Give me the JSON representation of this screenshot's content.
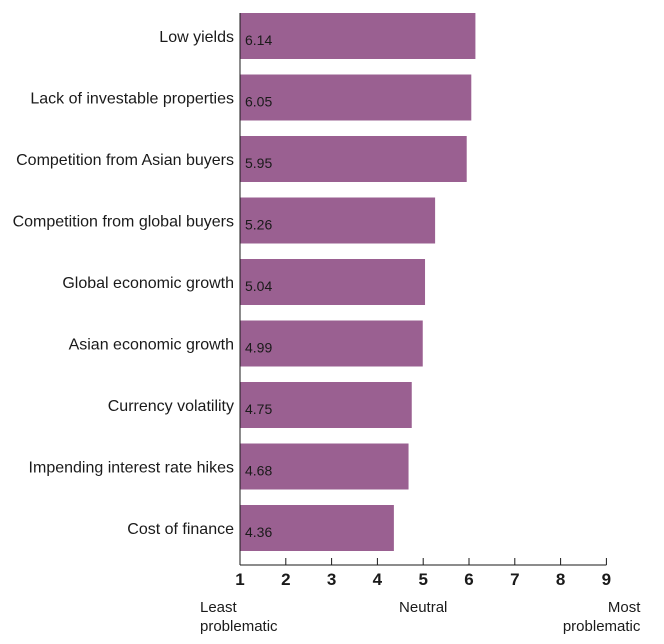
{
  "chart_data": {
    "type": "bar",
    "orientation": "horizontal",
    "categories": [
      "Low yields",
      "Lack of investable properties",
      "Competition from Asian buyers",
      "Competition from global buyers",
      "Global economic growth",
      "Asian economic growth",
      "Currency volatility",
      "Impending interest rate hikes",
      "Cost of finance"
    ],
    "values": [
      6.14,
      6.05,
      5.95,
      5.26,
      5.04,
      4.99,
      4.75,
      4.68,
      4.36
    ],
    "value_labels": [
      "6.14",
      "6.05",
      "5.95",
      "5.26",
      "5.04",
      "4.99",
      "4.75",
      "4.68",
      "4.36"
    ],
    "bar_color": "#9a6091",
    "xlim": [
      1,
      9
    ],
    "xticks": [
      "1",
      "2",
      "3",
      "4",
      "5",
      "6",
      "7",
      "8",
      "9"
    ],
    "grid": false,
    "annotations": [
      {
        "x": 1,
        "lines": [
          "Least",
          "problematic"
        ]
      },
      {
        "x": 5,
        "lines": [
          "Neutral"
        ]
      },
      {
        "x": 9,
        "lines": [
          "Most",
          "problematic"
        ]
      }
    ]
  }
}
